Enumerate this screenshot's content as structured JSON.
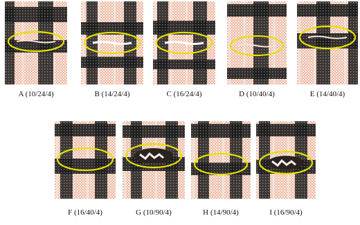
{
  "figure": {
    "panels": [
      {
        "id": "A",
        "label": "A (10/24/4)",
        "damage": "slit"
      },
      {
        "id": "B",
        "label": "B (14/24/4)",
        "damage": "torn"
      },
      {
        "id": "C",
        "label": "C (16/24/4)",
        "damage": "torn"
      },
      {
        "id": "D",
        "label": "D (10/40/4)",
        "damage": "slit"
      },
      {
        "id": "E",
        "label": "E (14/40/4)",
        "damage": "slit"
      },
      {
        "id": "F",
        "label": "F (16/40/4)",
        "damage": "none"
      },
      {
        "id": "G",
        "label": "G (10/90/4)",
        "damage": "hole"
      },
      {
        "id": "H",
        "label": "H (14/90/4)",
        "damage": "none"
      },
      {
        "id": "I",
        "label": "I (16/90/4)",
        "damage": "hole"
      }
    ],
    "colors": {
      "ellipse": "#e8e000",
      "pink": "#f1b9a2",
      "dark": "#1b1b1b",
      "white": "#f4f0ec"
    }
  }
}
